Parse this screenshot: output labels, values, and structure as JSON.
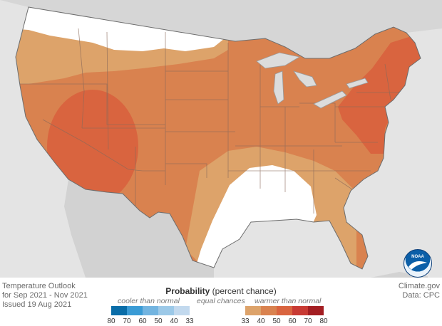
{
  "outlook": {
    "line1": "Temperature Outlook",
    "line2": "for Sep 2021 - Nov 2021",
    "line3": "Issued 19 Aug 2021"
  },
  "credit": {
    "site": "Climate.gov",
    "data": "Data: CPC"
  },
  "legend": {
    "title_bold": "Probability",
    "title_rest": " (percent chance)",
    "cooler": "cooler than normal",
    "equal": "equal chances",
    "warmer": "warmer than normal",
    "cool_ticks": [
      "80",
      "70",
      "60",
      "50",
      "40",
      "33"
    ],
    "warm_ticks": [
      "33",
      "40",
      "50",
      "60",
      "70",
      "80"
    ],
    "cool_colors": [
      "#0a6da8",
      "#3a9bd5",
      "#72b4e0",
      "#9cc9e8",
      "#c2d9ee"
    ],
    "warm_colors": [
      "#dda36a",
      "#d9824f",
      "#d9643f",
      "#c83a33",
      "#a31e22"
    ]
  },
  "logo": {
    "label": "NOAA"
  },
  "colors": {
    "background": "#e4e4e4",
    "equal_chances": "#ffffff",
    "warm_33_40": "#dda36a",
    "warm_40_50": "#d9824f",
    "warm_50_60": "#d9643f"
  }
}
